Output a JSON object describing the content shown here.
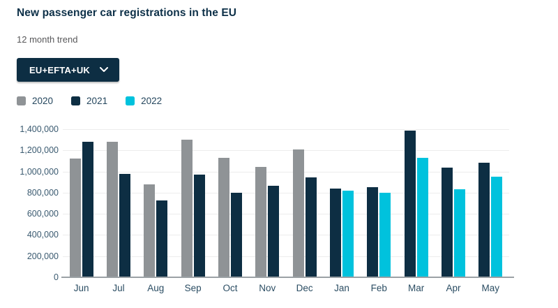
{
  "header": {
    "title": "New passenger car registrations in the EU",
    "subtitle": "12 month trend"
  },
  "filter": {
    "selected": "EU+EFTA+UK"
  },
  "colors": {
    "accent_navy": "#0d2e43",
    "bar_gray": "#8f9396",
    "bar_navy": "#0d2e43",
    "bar_cyan": "#00c2dd",
    "gridline": "#ececec",
    "axis_line": "#9ba1a5"
  },
  "chart_data": {
    "type": "bar",
    "title": "New passenger car registrations in the EU",
    "subtitle": "12 month trend",
    "xlabel": "",
    "ylabel": "",
    "categories": [
      "Jun",
      "Jul",
      "Aug",
      "Sep",
      "Oct",
      "Nov",
      "Dec",
      "Jan",
      "Feb",
      "Mar",
      "Apr",
      "May"
    ],
    "series": [
      {
        "name": "2020",
        "color": "#8f9396",
        "values": [
          1125000,
          1283000,
          880000,
          1300000,
          1128000,
          1042000,
          1208000,
          null,
          null,
          null,
          null,
          null
        ]
      },
      {
        "name": "2021",
        "color": "#0d2e43",
        "values": [
          1283000,
          976000,
          724000,
          970000,
          797000,
          863000,
          946000,
          842000,
          851000,
          1390000,
          1036000,
          1082000
        ]
      },
      {
        "name": "2022",
        "color": "#00c2dd",
        "values": [
          null,
          null,
          null,
          null,
          null,
          null,
          null,
          817000,
          799000,
          1127000,
          830000,
          949000
        ]
      }
    ],
    "ylim": [
      0,
      1400000
    ],
    "ytick_values": [
      0,
      200000,
      400000,
      600000,
      800000,
      1000000,
      1200000,
      1400000
    ],
    "ytick_labels": [
      "0",
      "200,000",
      "400,000",
      "600,000",
      "800,000",
      "1,000,000",
      "1,200,000",
      "1,400,000"
    ],
    "grid": true,
    "legend_position": "top-left"
  }
}
